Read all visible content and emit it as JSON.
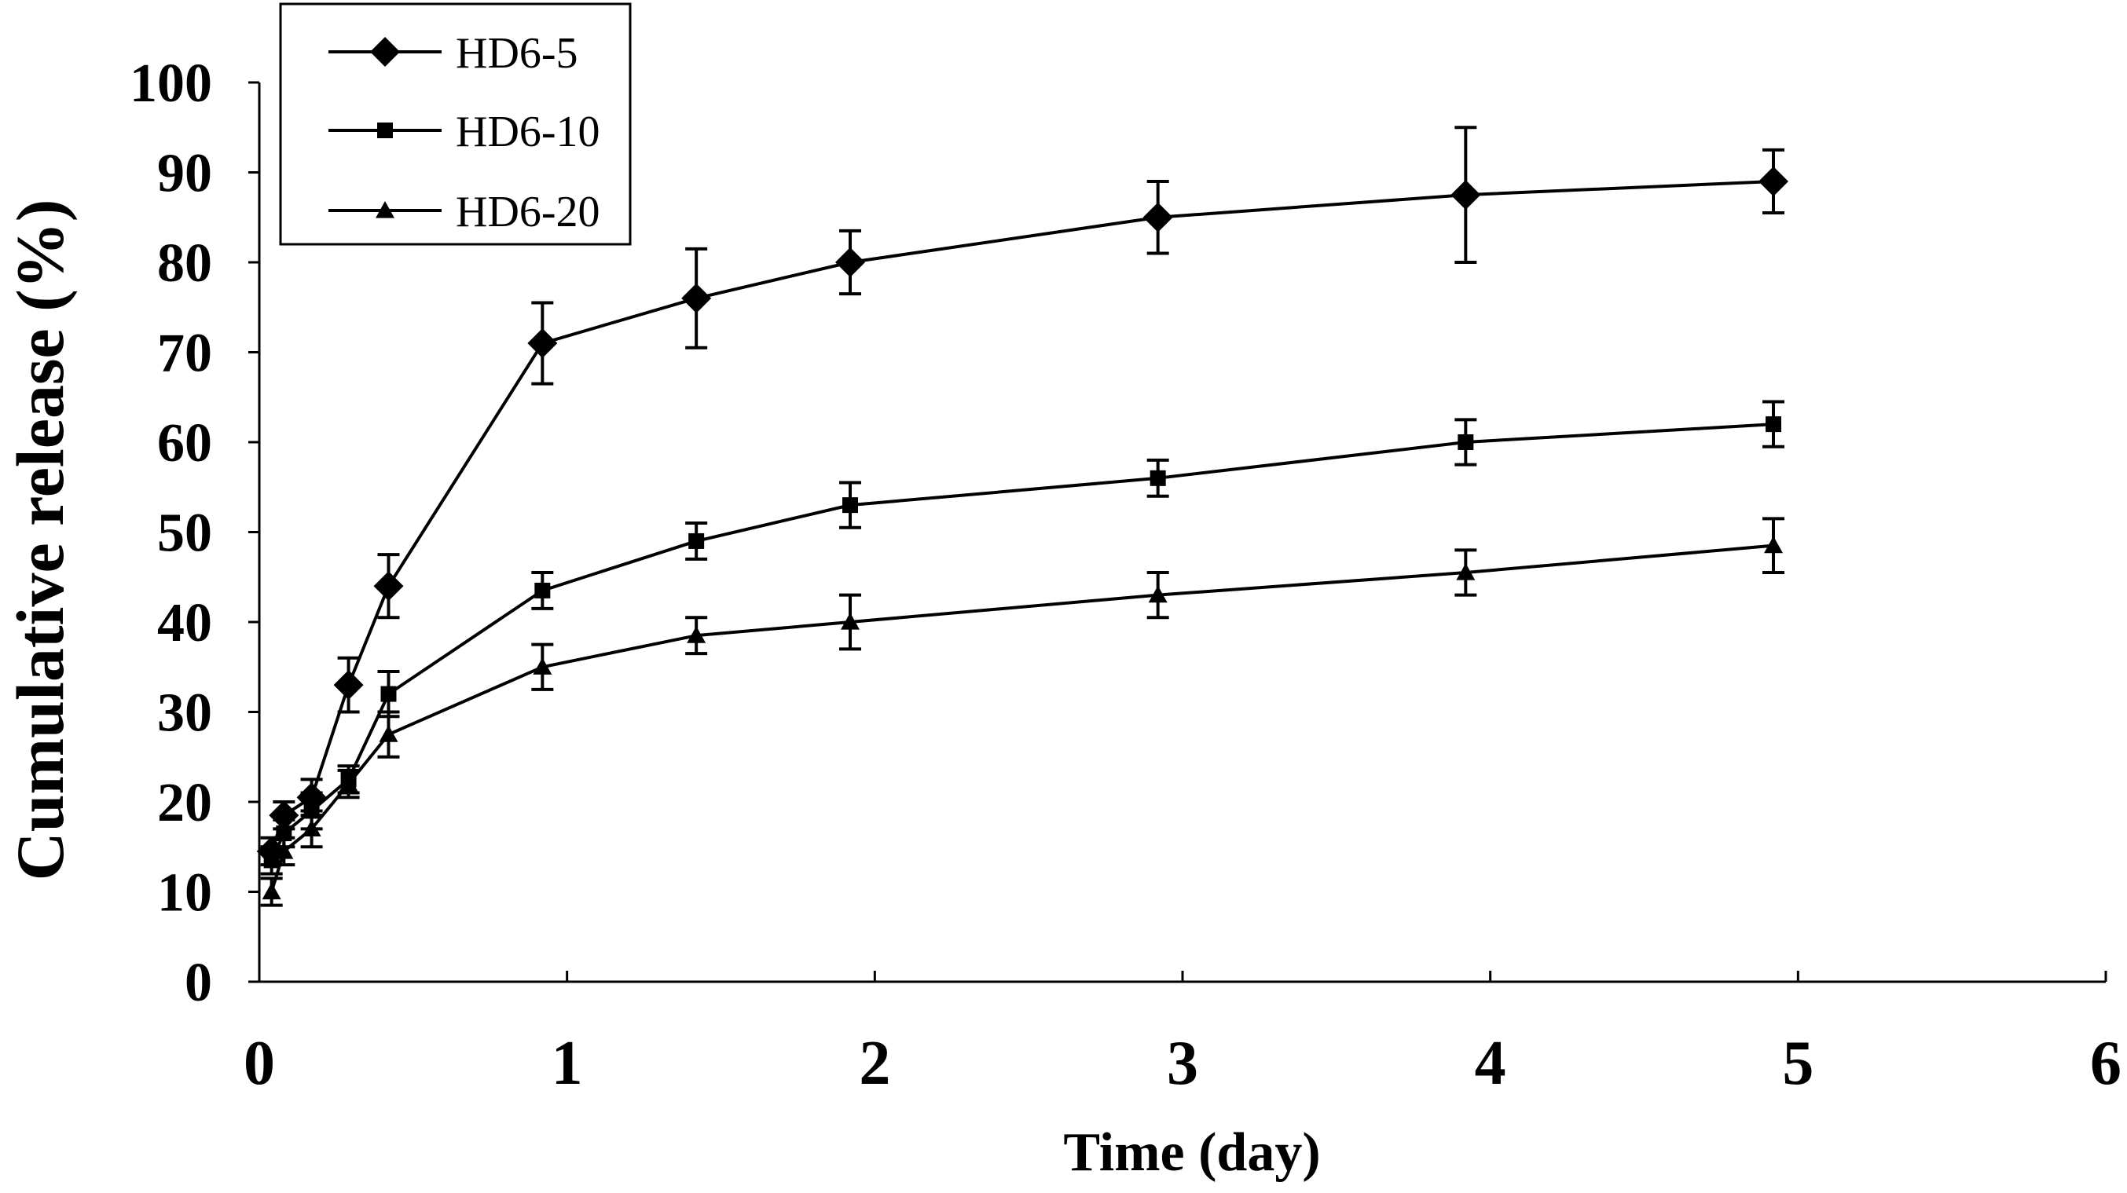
{
  "chart_data": {
    "type": "line",
    "title": "",
    "xlabel": "Time (day)",
    "ylabel": "Cumulative release (%)",
    "xlim": [
      0,
      6
    ],
    "ylim": [
      0,
      100
    ],
    "x_ticks": [
      0,
      1,
      2,
      3,
      4,
      5,
      6
    ],
    "y_ticks": [
      0,
      10,
      20,
      30,
      40,
      50,
      60,
      70,
      80,
      90,
      100
    ],
    "grid": false,
    "legend_position": "top-left",
    "series": [
      {
        "name": "HD6-5",
        "marker": "diamond",
        "x": [
          0.04,
          0.08,
          0.17,
          0.29,
          0.42,
          0.92,
          1.42,
          1.92,
          2.92,
          3.92,
          4.92
        ],
        "y": [
          14.5,
          18.5,
          20.5,
          33,
          44,
          71,
          76,
          80,
          85,
          87.5,
          89
        ],
        "err": [
          1.5,
          1.5,
          2,
          3,
          3.5,
          4.5,
          5.5,
          3.5,
          4,
          7.5,
          3.5
        ]
      },
      {
        "name": "HD6-10",
        "marker": "square",
        "x": [
          0.04,
          0.08,
          0.17,
          0.29,
          0.42,
          0.92,
          1.42,
          1.92,
          2.92,
          3.92,
          4.92
        ],
        "y": [
          13.5,
          16.5,
          19,
          22.5,
          32,
          43.5,
          49,
          53,
          56,
          60,
          62
        ],
        "err": [
          1.5,
          1.5,
          2,
          1.5,
          2.5,
          2,
          2,
          2.5,
          2,
          2.5,
          2.5
        ]
      },
      {
        "name": "HD6-20",
        "marker": "triangle",
        "x": [
          0.04,
          0.08,
          0.17,
          0.29,
          0.42,
          0.92,
          1.42,
          1.92,
          2.92,
          3.92,
          4.92
        ],
        "y": [
          10,
          14.5,
          17,
          22,
          27.5,
          35,
          38.5,
          40,
          43,
          45.5,
          48.5
        ],
        "err": [
          1.5,
          1.5,
          2,
          1.5,
          2.5,
          2.5,
          2,
          3,
          2.5,
          2.5,
          3
        ]
      }
    ]
  }
}
